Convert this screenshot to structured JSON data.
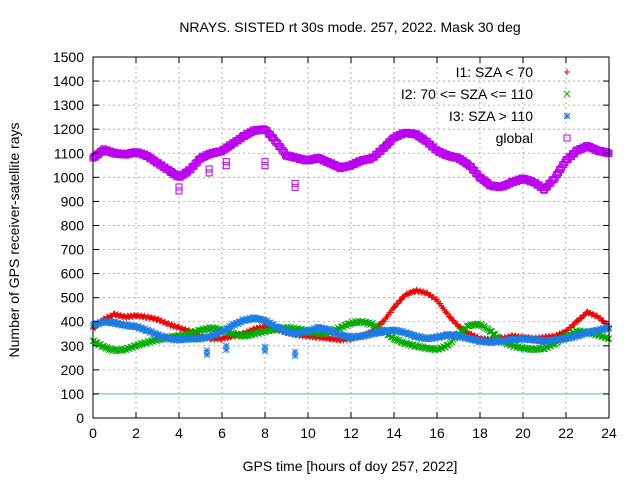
{
  "chart_data": {
    "type": "scatter",
    "title": "NRAYS. SISTED rt 30s mode. 257, 2022. Mask 30 deg",
    "xlabel": "GPS time [hours of doy 257, 2022]",
    "ylabel": "Number of GPS receiver-satellite rays",
    "xlim": [
      0,
      24
    ],
    "ylim": [
      0,
      1500
    ],
    "x_ticks": [
      0,
      2,
      4,
      6,
      8,
      10,
      12,
      14,
      16,
      18,
      20,
      22,
      24
    ],
    "y_ticks": [
      0,
      100,
      200,
      300,
      400,
      500,
      600,
      700,
      800,
      900,
      1000,
      1100,
      1200,
      1300,
      1400,
      1500
    ],
    "grid": true,
    "legend_position": "top-right",
    "reference_line": {
      "y": 100,
      "color": "#33ccdd"
    },
    "series": [
      {
        "name": "I1: SZA < 70",
        "marker": "+",
        "color": "#ee0000",
        "x": [
          0,
          0.5,
          1,
          1.5,
          2,
          2.5,
          3,
          3.5,
          4,
          4.5,
          5,
          5.5,
          6,
          6.5,
          7,
          7.5,
          8,
          8.5,
          9,
          9.5,
          10,
          10.5,
          11,
          11.5,
          12,
          12.5,
          13,
          13.5,
          14,
          14.5,
          15,
          15.5,
          16,
          16.5,
          17,
          17.5,
          18,
          18.5,
          19,
          19.5,
          20,
          20.5,
          21,
          21.5,
          22,
          22.5,
          23,
          23.5,
          24
        ],
        "values": [
          370,
          410,
          430,
          420,
          425,
          420,
          410,
          390,
          375,
          360,
          340,
          330,
          330,
          340,
          350,
          370,
          380,
          370,
          355,
          345,
          340,
          335,
          330,
          325,
          330,
          340,
          360,
          400,
          460,
          510,
          530,
          520,
          490,
          430,
          380,
          350,
          330,
          325,
          330,
          340,
          335,
          330,
          335,
          340,
          360,
          400,
          440,
          420,
          380
        ]
      },
      {
        "name": "I2: 70 <= SZA <= 110",
        "marker": "x",
        "color": "#00aa00",
        "x": [
          0,
          0.5,
          1,
          1.5,
          2,
          2.5,
          3,
          3.5,
          4,
          4.5,
          5,
          5.5,
          6,
          6.5,
          7,
          7.5,
          8,
          8.5,
          9,
          9.5,
          10,
          10.5,
          11,
          11.5,
          12,
          12.5,
          13,
          13.5,
          14,
          14.5,
          15,
          15.5,
          16,
          16.5,
          17,
          17.5,
          18,
          18.5,
          19,
          19.5,
          20,
          20.5,
          21,
          21.5,
          22,
          22.5,
          23,
          23.5,
          24
        ],
        "values": [
          320,
          295,
          280,
          285,
          300,
          315,
          325,
          335,
          340,
          350,
          365,
          375,
          365,
          350,
          340,
          350,
          360,
          370,
          375,
          370,
          360,
          350,
          355,
          375,
          395,
          400,
          390,
          360,
          330,
          310,
          300,
          290,
          285,
          300,
          350,
          385,
          390,
          360,
          320,
          300,
          290,
          285,
          290,
          310,
          340,
          360,
          355,
          345,
          330
        ]
      },
      {
        "name": "I3: SZA > 110",
        "marker": "*",
        "color": "#1e7de0",
        "x": [
          0,
          0.5,
          1,
          1.5,
          2,
          2.5,
          3,
          3.5,
          4,
          4.5,
          5,
          5.5,
          6,
          6.5,
          7,
          7.5,
          8,
          8.5,
          9,
          9.5,
          10,
          10.5,
          11,
          11.5,
          12,
          12.5,
          13,
          13.5,
          14,
          14.5,
          15,
          15.5,
          16,
          16.5,
          17,
          17.5,
          18,
          18.5,
          19,
          19.5,
          20,
          20.5,
          21,
          21.5,
          22,
          22.5,
          23,
          23.5,
          24
        ],
        "values": [
          385,
          400,
          395,
          385,
          380,
          365,
          345,
          330,
          325,
          330,
          330,
          340,
          360,
          385,
          405,
          415,
          405,
          380,
          360,
          350,
          360,
          375,
          365,
          345,
          335,
          340,
          350,
          360,
          365,
          355,
          340,
          330,
          335,
          345,
          340,
          330,
          320,
          315,
          320,
          325,
          330,
          325,
          320,
          325,
          330,
          340,
          355,
          365,
          375
        ]
      },
      {
        "name": "global",
        "marker": "square",
        "color": "#bb00ee",
        "x": [
          0,
          0.5,
          1,
          1.5,
          2,
          2.5,
          3,
          3.5,
          4,
          4.5,
          5,
          5.5,
          6,
          6.5,
          7,
          7.5,
          8,
          8.5,
          9,
          9.5,
          10,
          10.5,
          11,
          11.5,
          12,
          12.5,
          13,
          13.5,
          14,
          14.5,
          15,
          15.5,
          16,
          16.5,
          17,
          17.5,
          18,
          18.5,
          19,
          19.5,
          20,
          20.5,
          21,
          21.5,
          22,
          22.5,
          23,
          23.5,
          24
        ],
        "values": [
          1080,
          1115,
          1100,
          1095,
          1105,
          1090,
          1060,
          1030,
          1000,
          1030,
          1080,
          1100,
          1110,
          1140,
          1170,
          1195,
          1200,
          1150,
          1090,
          1080,
          1070,
          1080,
          1060,
          1040,
          1050,
          1070,
          1080,
          1120,
          1165,
          1185,
          1180,
          1150,
          1110,
          1090,
          1080,
          1050,
          1000,
          965,
          960,
          980,
          995,
          980,
          950,
          1000,
          1070,
          1110,
          1130,
          1110,
          1100
        ]
      }
    ],
    "outliers": [
      {
        "series": "I3: SZA > 110",
        "x": [
          5.3,
          6.2,
          8.0,
          9.4
        ],
        "values": [
          280,
          300,
          295,
          275
        ]
      },
      {
        "series": "global",
        "x": [
          4.0,
          5.4,
          6.2,
          8.0,
          9.4
        ],
        "values": [
          960,
          1035,
          1065,
          1065,
          975
        ]
      }
    ]
  }
}
